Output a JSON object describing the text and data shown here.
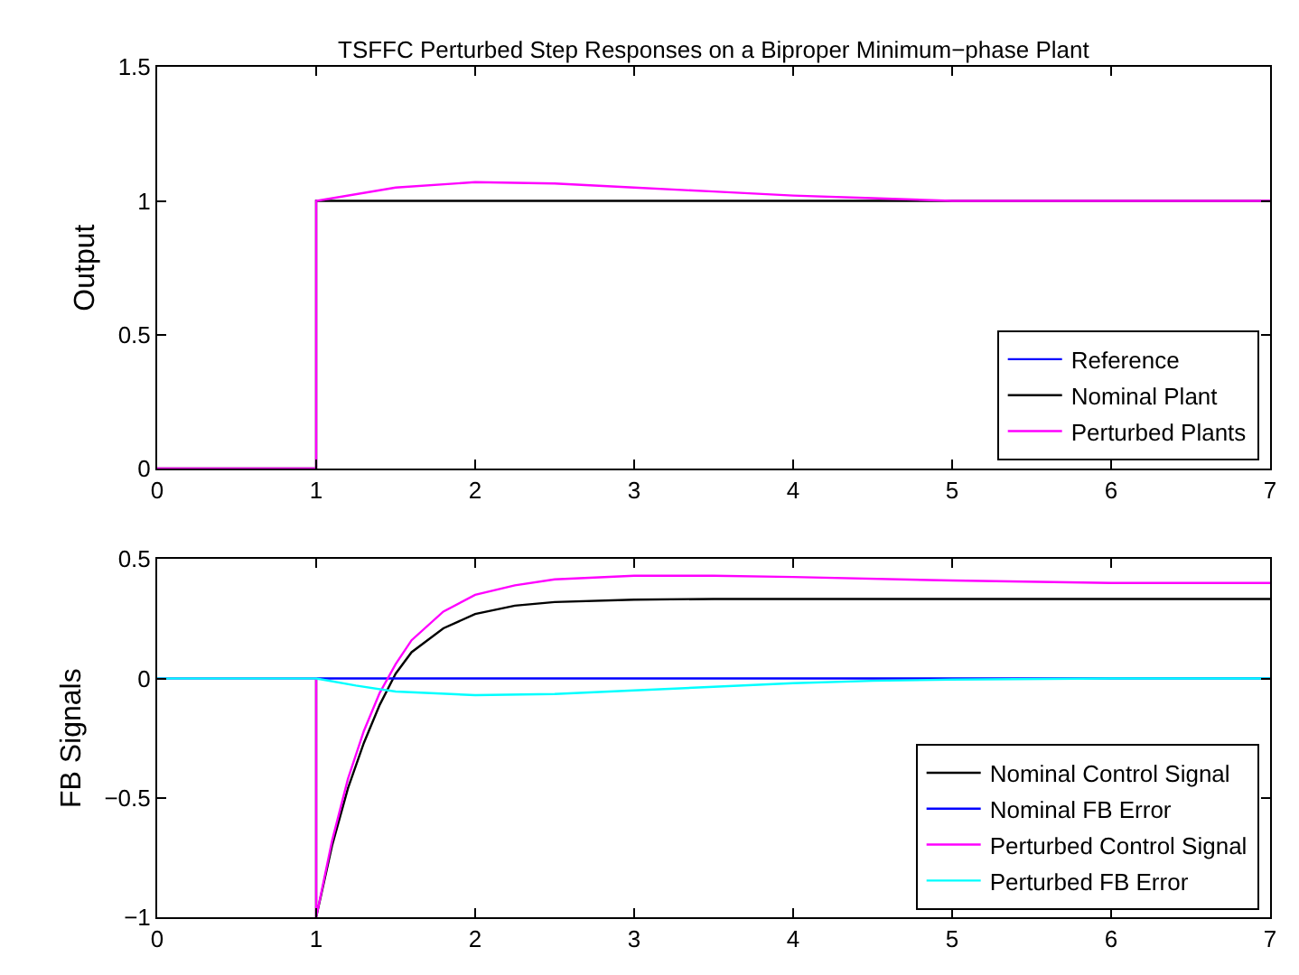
{
  "chart_data": [
    {
      "type": "line",
      "title": "TSFFC Perturbed Step Responses on a Biproper Minimum−phase Plant",
      "ylabel": "Output",
      "xlim": [
        0,
        7
      ],
      "xticks": [
        0,
        1,
        2,
        3,
        4,
        5,
        6,
        7
      ],
      "ylim": [
        0,
        1.5
      ],
      "yticks": [
        0,
        0.5,
        1,
        1.5
      ],
      "legend": "bottom right",
      "series": [
        {
          "name": "Reference",
          "color": "#0000ff",
          "values": [
            null
          ]
        },
        {
          "name": "Nominal Plant",
          "color": "#000000",
          "x": [
            0,
            1,
            1,
            7
          ],
          "values": [
            0,
            0,
            1,
            1
          ]
        },
        {
          "name": "Perturbed Plants",
          "color": "#ff00ff",
          "x": [
            0,
            1,
            1,
            1.5,
            2,
            2.5,
            3,
            3.5,
            4,
            4.5,
            5,
            6,
            7
          ],
          "values": [
            0,
            0,
            1,
            1.05,
            1.07,
            1.065,
            1.05,
            1.035,
            1.02,
            1.01,
            1.0,
            1.0,
            1.0
          ]
        }
      ]
    },
    {
      "type": "line",
      "ylabel": "FB Signals",
      "xlim": [
        0,
        7
      ],
      "xticks": [
        0,
        1,
        2,
        3,
        4,
        5,
        6,
        7
      ],
      "ylim": [
        -1,
        0.5
      ],
      "yticks": [
        {
          "value": -1,
          "label": "−1"
        },
        {
          "value": -0.5,
          "label": "−0.5"
        },
        0,
        0.5
      ],
      "legend": "bottom right",
      "series": [
        {
          "name": "Nominal Control Signal",
          "color": "#000000",
          "x": [
            0,
            1,
            1,
            1.1,
            1.2,
            1.3,
            1.4,
            1.5,
            1.6,
            1.8,
            2,
            2.25,
            2.5,
            3,
            3.5,
            4,
            5,
            6,
            7
          ],
          "values": [
            0,
            0,
            -1,
            -0.7,
            -0.46,
            -0.27,
            -0.11,
            0.02,
            0.11,
            0.21,
            0.27,
            0.305,
            0.32,
            0.33,
            0.333,
            0.333,
            0.333,
            0.333,
            0.333
          ]
        },
        {
          "name": "Nominal FB Error",
          "color": "#0000ff",
          "x": [
            0,
            7
          ],
          "values": [
            0,
            0
          ]
        },
        {
          "name": "Perturbed Control Signal",
          "color": "#ff00ff",
          "x": [
            0,
            1,
            1,
            1.1,
            1.2,
            1.3,
            1.4,
            1.5,
            1.6,
            1.8,
            2,
            2.25,
            2.5,
            3,
            3.5,
            4,
            5,
            6,
            7
          ],
          "values": [
            0,
            0,
            -1,
            -0.68,
            -0.42,
            -0.22,
            -0.06,
            0.06,
            0.16,
            0.28,
            0.35,
            0.39,
            0.415,
            0.43,
            0.43,
            0.425,
            0.41,
            0.4,
            0.4
          ]
        },
        {
          "name": "Perturbed FB Error",
          "color": "#00ffff",
          "x": [
            0,
            1,
            1.25,
            1.5,
            2,
            2.5,
            3,
            3.5,
            4,
            4.5,
            5,
            6,
            7
          ],
          "values": [
            0,
            0,
            -0.03,
            -0.055,
            -0.07,
            -0.065,
            -0.05,
            -0.035,
            -0.02,
            -0.01,
            -0.005,
            0,
            0
          ]
        }
      ]
    }
  ]
}
